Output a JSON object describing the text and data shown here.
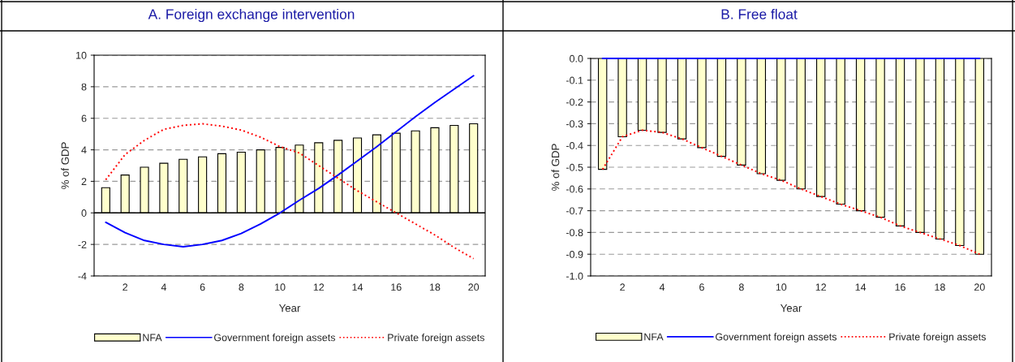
{
  "chart_data": [
    {
      "type": "bar",
      "title": "A. Foreign exchange intervention",
      "xlabel": "Year",
      "ylabel": "% of GDP",
      "categories": [
        null,
        "2",
        null,
        "4",
        null,
        "6",
        null,
        "8",
        null,
        "10",
        null,
        "12",
        null,
        "14",
        null,
        "16",
        null,
        "18",
        null,
        "20"
      ],
      "series": [
        {
          "name": "NFA",
          "color": "#ffffcc",
          "values": [
            1.6,
            2.4,
            2.9,
            3.15,
            3.4,
            3.55,
            3.75,
            3.85,
            4.0,
            4.15,
            4.3,
            4.45,
            4.6,
            4.75,
            4.95,
            5.05,
            5.2,
            5.4,
            5.55,
            5.65
          ]
        },
        {
          "name": "Government foreign assets",
          "type": "line",
          "line_style": "solid",
          "color": "#0000ff",
          "values": [
            -0.6,
            -1.25,
            -1.75,
            -2.0,
            -2.15,
            -2.0,
            -1.75,
            -1.3,
            -0.7,
            0.0,
            0.8,
            1.55,
            2.4,
            3.3,
            4.2,
            5.15,
            6.1,
            7.0,
            7.85,
            8.7
          ]
        },
        {
          "name": "Private foreign assets",
          "type": "line",
          "line_style": "dotted",
          "color": "#ff0000",
          "values": [
            2.1,
            3.7,
            4.6,
            5.3,
            5.55,
            5.65,
            5.5,
            5.25,
            4.8,
            4.2,
            3.8,
            3.0,
            2.2,
            1.4,
            0.7,
            0.0,
            -0.7,
            -1.4,
            -2.2,
            -2.9
          ]
        }
      ],
      "ylim": [
        -4,
        10
      ],
      "yticks": [
        -4,
        -2,
        0,
        2,
        4,
        6,
        8,
        10
      ],
      "grid": "y",
      "legend": "bottom"
    },
    {
      "type": "bar",
      "title": "B. Free float",
      "xlabel": "Year",
      "ylabel": "% of GDP",
      "categories": [
        null,
        "2",
        null,
        "4",
        null,
        "6",
        null,
        "8",
        null,
        "10",
        null,
        "12",
        null,
        "14",
        null,
        "16",
        null,
        "18",
        null,
        "20"
      ],
      "series": [
        {
          "name": "NFA",
          "color": "#ffffcc",
          "values": [
            -0.51,
            -0.36,
            -0.33,
            -0.34,
            -0.37,
            -0.41,
            -0.45,
            -0.49,
            -0.53,
            -0.56,
            -0.6,
            -0.635,
            -0.67,
            -0.7,
            -0.73,
            -0.77,
            -0.8,
            -0.83,
            -0.86,
            -0.9
          ]
        },
        {
          "name": "Government foreign assets",
          "type": "line",
          "line_style": "solid",
          "color": "#0000ff",
          "values": [
            0,
            0,
            0,
            0,
            0,
            0,
            0,
            0,
            0,
            0,
            0,
            0,
            0,
            0,
            0,
            0,
            0,
            0,
            0,
            0
          ]
        },
        {
          "name": "Private foreign assets",
          "type": "line",
          "line_style": "dotted",
          "color": "#ff0000",
          "values": [
            -0.51,
            -0.36,
            -0.33,
            -0.34,
            -0.37,
            -0.41,
            -0.45,
            -0.49,
            -0.53,
            -0.56,
            -0.6,
            -0.635,
            -0.67,
            -0.7,
            -0.73,
            -0.77,
            -0.8,
            -0.83,
            -0.86,
            -0.9
          ]
        }
      ],
      "ylim": [
        -1.0,
        0.0
      ],
      "yticks": [
        {
          "value": -1.0,
          "label": "-1.0"
        },
        -0.9,
        -0.8,
        -0.7,
        -0.6,
        -0.5,
        -0.4,
        -0.3,
        -0.2,
        -0.1,
        {
          "value": 0.0,
          "label": "0.0"
        }
      ],
      "grid": "y",
      "legend": "bottom"
    }
  ]
}
